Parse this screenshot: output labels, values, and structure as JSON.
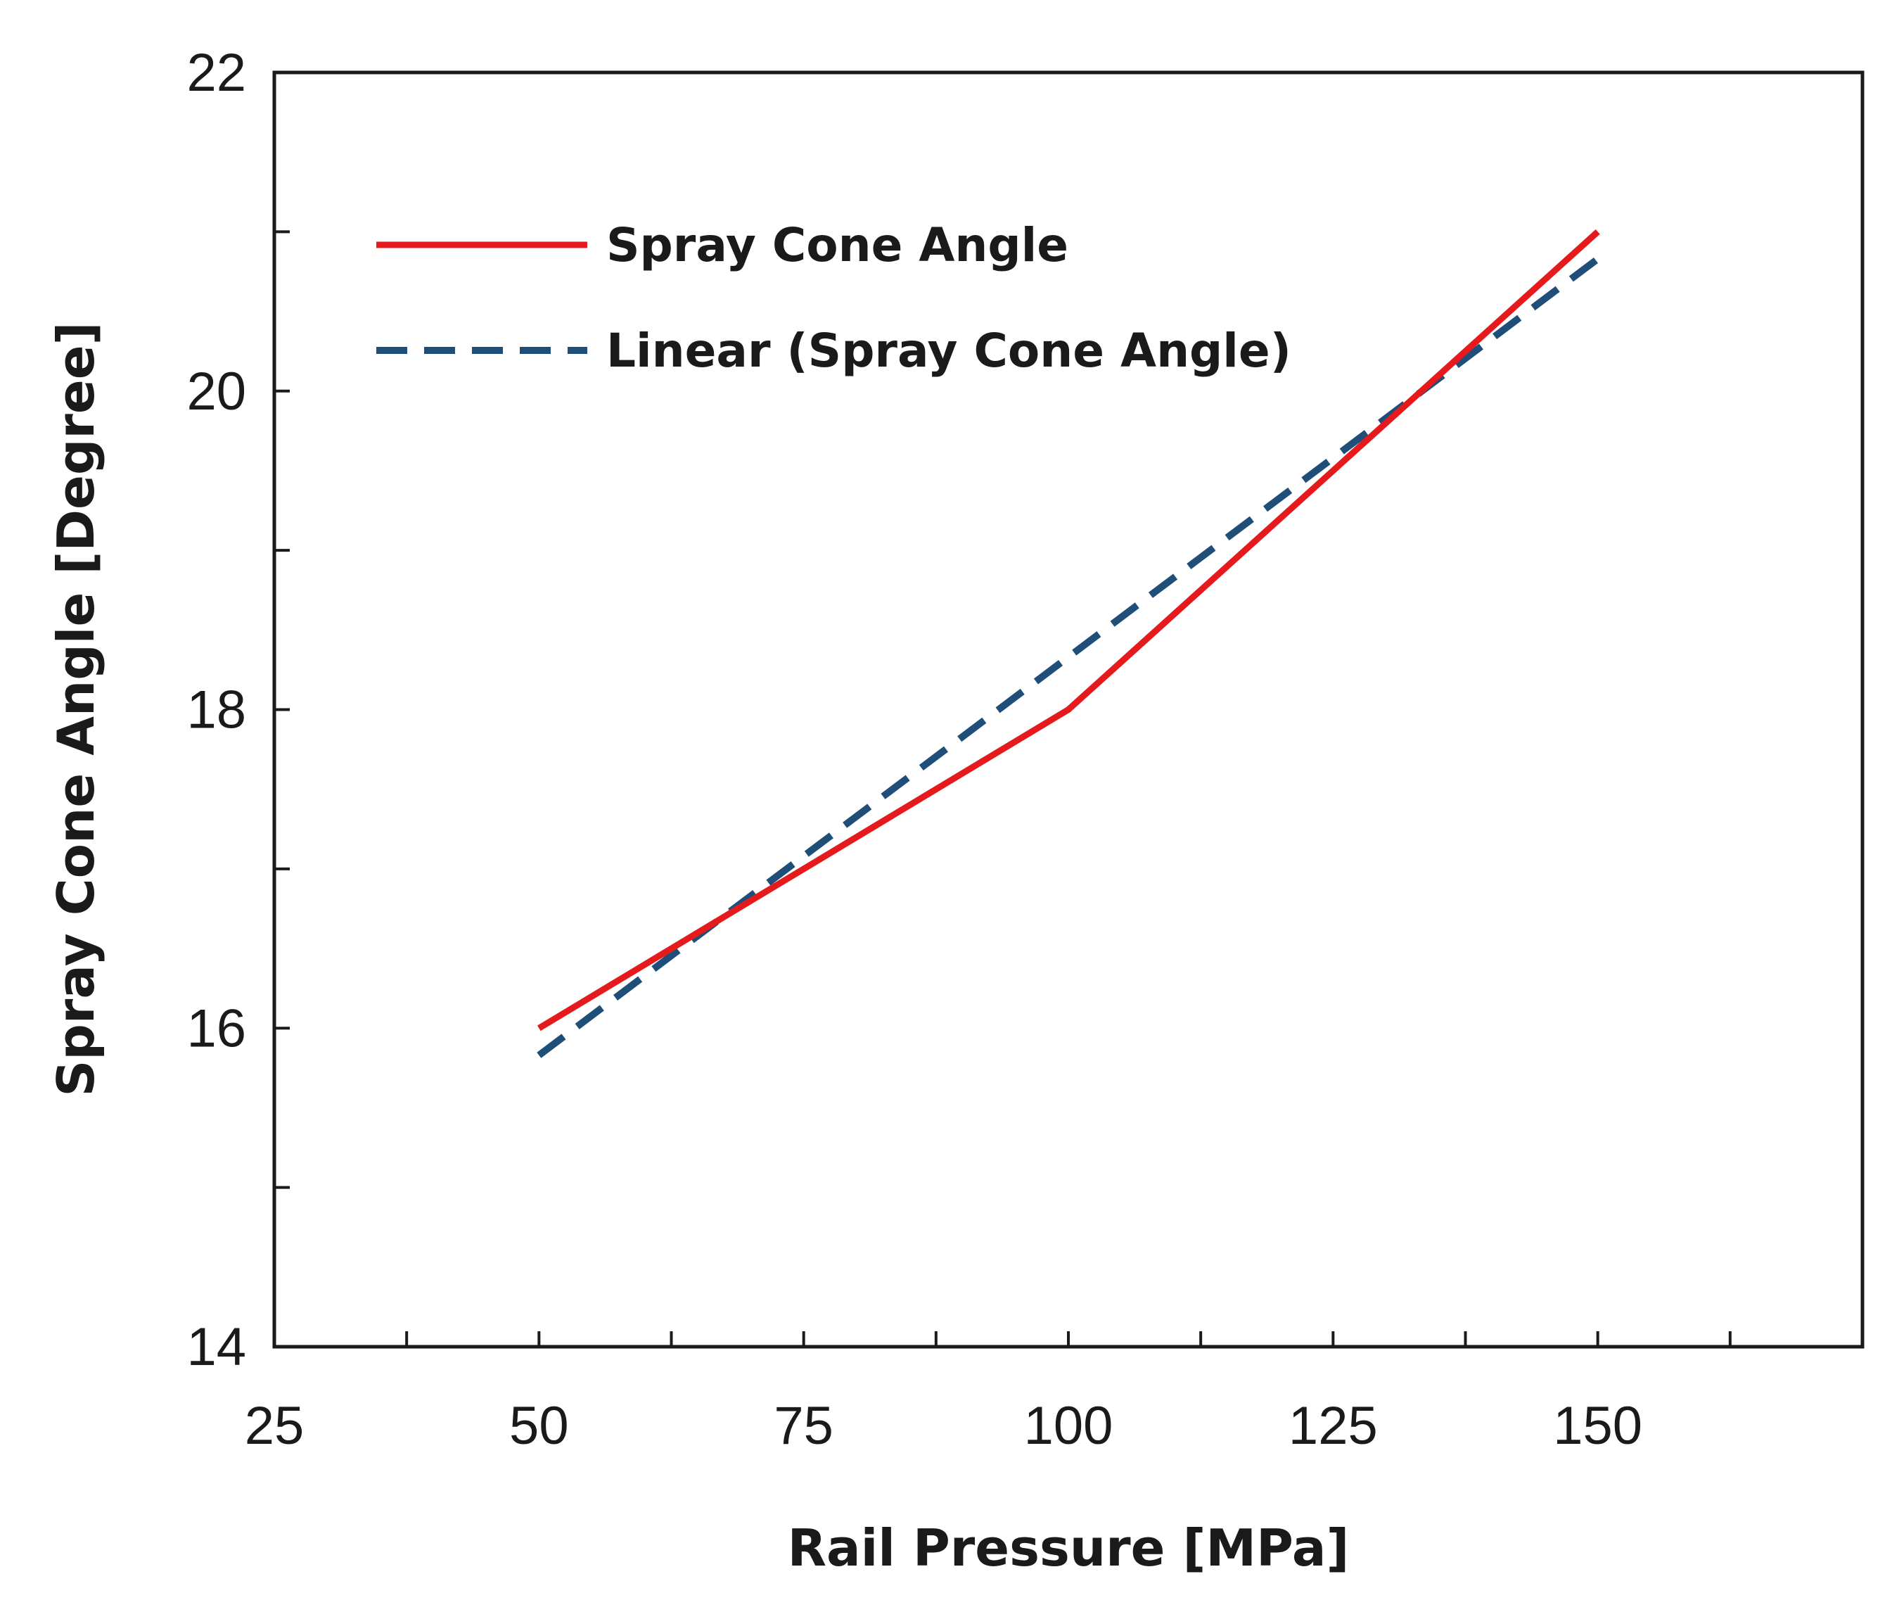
{
  "chart_data": {
    "type": "line",
    "title": "",
    "xlabel": "Rail Pressure [MPa]",
    "ylabel": "Spray Cone Angle [Degree]",
    "xlim": [
      25,
      175
    ],
    "ylim": [
      14,
      22
    ],
    "x_ticks": [
      25,
      50,
      75,
      100,
      125,
      150
    ],
    "x_minor_ticks": [
      37.5,
      62.5,
      87.5,
      112.5,
      137.5,
      162.5
    ],
    "y_ticks": [
      14,
      16,
      18,
      20,
      22
    ],
    "y_minor_ticks": [
      15,
      17,
      19,
      21
    ],
    "grid": false,
    "legend_position": "top-left",
    "series": [
      {
        "name": "Spray Cone Angle",
        "style": "solid",
        "color": "#e41a1c",
        "x": [
          50,
          100,
          150
        ],
        "y": [
          16.0,
          18.0,
          21.0
        ]
      },
      {
        "name": "Linear (Spray Cone Angle)",
        "style": "dashed",
        "color": "#1f4e79",
        "x": [
          50,
          150
        ],
        "y": [
          15.83,
          20.83
        ]
      }
    ]
  }
}
